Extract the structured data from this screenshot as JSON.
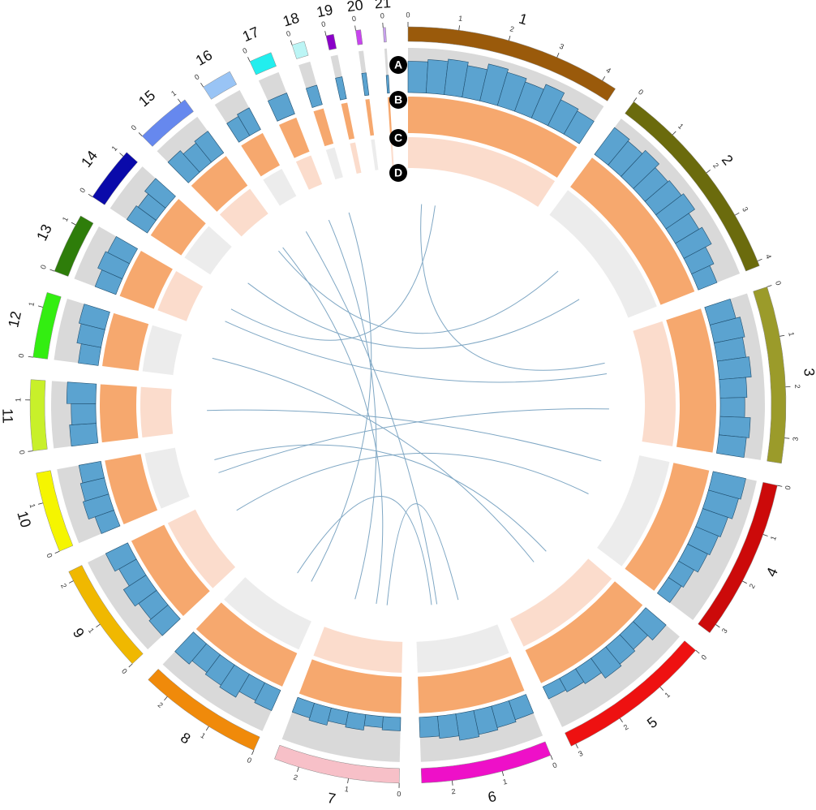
{
  "chart_data": {
    "type": "circos",
    "track_labels": [
      "A",
      "B",
      "C",
      "D"
    ],
    "chromosomes": [
      {
        "name": "1",
        "color": "#9a5a0b",
        "length": 4.3,
        "ticks": [
          0,
          1,
          2,
          3,
          4
        ],
        "track_a": [
          0.7,
          0.75,
          0.8,
          0.72,
          0.85,
          0.78,
          0.7,
          0.82,
          0.65,
          0.6
        ]
      },
      {
        "name": "2",
        "color": "#6b6b0d",
        "length": 4.1,
        "ticks": [
          0,
          1,
          2,
          3,
          4
        ],
        "track_a": [
          0.75,
          0.7,
          0.8,
          0.68,
          0.72,
          0.78,
          0.62,
          0.7,
          0.55,
          0.45
        ]
      },
      {
        "name": "3",
        "color": "#9b9b2a",
        "length": 3.5,
        "ticks": [
          0,
          1,
          2,
          3
        ],
        "track_a": [
          0.6,
          0.7,
          0.65,
          0.72,
          0.6,
          0.55,
          0.68,
          0.62
        ]
      },
      {
        "name": "4",
        "color": "#cc0a0a",
        "length": 3.2,
        "ticks": [
          0,
          1,
          2,
          3
        ],
        "track_a": [
          0.75,
          0.7,
          0.6,
          0.55,
          0.5,
          0.4,
          0.35
        ]
      },
      {
        "name": "5",
        "color": "#ee1111",
        "length": 3.1,
        "ticks": [
          0,
          1,
          2,
          3
        ],
        "track_a": [
          0.6,
          0.45,
          0.5,
          0.55,
          0.4,
          0.35,
          0.3
        ]
      },
      {
        "name": "6",
        "color": "#ee10c8",
        "length": 2.6,
        "ticks": [
          0,
          1,
          2
        ],
        "track_a": [
          0.45,
          0.5,
          0.55,
          0.6,
          0.5,
          0.45
        ]
      },
      {
        "name": "7",
        "color": "#f7c0c8",
        "length": 2.5,
        "ticks": [
          0,
          1,
          2
        ],
        "track_a": [
          0.3,
          0.25,
          0.35,
          0.3,
          0.4,
          0.35
        ]
      },
      {
        "name": "8",
        "color": "#f08a0a",
        "length": 2.5,
        "ticks": [
          0,
          1,
          2
        ],
        "track_a": [
          0.5,
          0.45,
          0.6,
          0.55,
          0.5,
          0.6
        ]
      },
      {
        "name": "9",
        "color": "#f0b800",
        "length": 2.2,
        "ticks": [
          0,
          1,
          2
        ],
        "track_a": [
          0.55,
          0.5,
          0.6,
          0.45,
          0.55
        ]
      },
      {
        "name": "10",
        "color": "#f5f500",
        "length": 1.6,
        "ticks": [
          0,
          1
        ],
        "track_a": [
          0.45,
          0.6,
          0.55,
          0.5
        ]
      },
      {
        "name": "11",
        "color": "#c8f02a",
        "length": 1.4,
        "ticks": [
          0,
          1
        ],
        "track_a": [
          0.6,
          0.55,
          0.65
        ]
      },
      {
        "name": "12",
        "color": "#33ee11",
        "length": 1.3,
        "ticks": [
          0,
          1
        ],
        "track_a": [
          0.45,
          0.55,
          0.6
        ]
      },
      {
        "name": "13",
        "color": "#2e7d0a",
        "length": 1.2,
        "ticks": [
          0,
          1
        ],
        "track_a": [
          0.5,
          0.6,
          0.55
        ]
      },
      {
        "name": "14",
        "color": "#0a0aaa",
        "length": 1.1,
        "ticks": [
          0,
          1
        ],
        "track_a": [
          0.55,
          0.5,
          0.6
        ]
      },
      {
        "name": "15",
        "color": "#6688ee",
        "length": 1.1,
        "ticks": [
          0,
          1
        ],
        "track_a": [
          0.65,
          0.55,
          0.6
        ]
      },
      {
        "name": "16",
        "color": "#99c4f5",
        "length": 0.6,
        "ticks": [
          0
        ],
        "track_a": [
          0.5,
          0.55
        ]
      },
      {
        "name": "17",
        "color": "#22eeee",
        "length": 0.45,
        "ticks": [
          0
        ],
        "track_a": [
          0.5
        ]
      },
      {
        "name": "18",
        "color": "#bbf5f5",
        "length": 0.25,
        "ticks": [
          0
        ],
        "track_a": [
          0.45
        ]
      },
      {
        "name": "19",
        "color": "#8a00c8",
        "length": 0.15,
        "ticks": [
          0
        ],
        "track_a": [
          0.5
        ]
      },
      {
        "name": "20",
        "color": "#c844ee",
        "length": 0.1,
        "ticks": [
          0
        ],
        "track_a": [
          0.5
        ]
      },
      {
        "name": "21",
        "color": "#c8a0ee",
        "length": 0.05,
        "ticks": [
          0
        ],
        "track_a": [
          0.4
        ]
      }
    ],
    "links": [
      {
        "source": [
          "1",
          0.5
        ],
        "target": [
          "3",
          0.8
        ]
      },
      {
        "source": [
          "2",
          1.5
        ],
        "target": [
          "15",
          0.6
        ]
      },
      {
        "source": [
          "3",
          1.2
        ],
        "target": [
          "13",
          0.5
        ]
      },
      {
        "source": [
          "4",
          0.5
        ],
        "target": [
          "11",
          0.7
        ]
      },
      {
        "source": [
          "5",
          0.8
        ],
        "target": [
          "10",
          0.9
        ]
      },
      {
        "source": [
          "6",
          1.0
        ],
        "target": [
          "7",
          0.6
        ]
      },
      {
        "source": [
          "6",
          2.0
        ],
        "target": [
          "8",
          1.2
        ]
      },
      {
        "source": [
          "7",
          1.8
        ],
        "target": [
          "17",
          0.2
        ]
      },
      {
        "source": [
          "8",
          0.6
        ],
        "target": [
          "18",
          0.1
        ]
      },
      {
        "source": [
          "9",
          1.5
        ],
        "target": [
          "4",
          1.8
        ]
      },
      {
        "source": [
          "10",
          0.4
        ],
        "target": [
          "3",
          2.5
        ]
      },
      {
        "source": [
          "12",
          0.8
        ],
        "target": [
          "5",
          1.4
        ]
      },
      {
        "source": [
          "16",
          0.3
        ],
        "target": [
          "6",
          1.8
        ]
      },
      {
        "source": [
          "15",
          0.8
        ],
        "target": [
          "7",
          1.0
        ]
      },
      {
        "source": [
          "2",
          2.8
        ],
        "target": [
          "14",
          0.5
        ]
      },
      {
        "source": [
          "1",
          1.0
        ],
        "target": [
          "13",
          1.0
        ]
      }
    ]
  }
}
